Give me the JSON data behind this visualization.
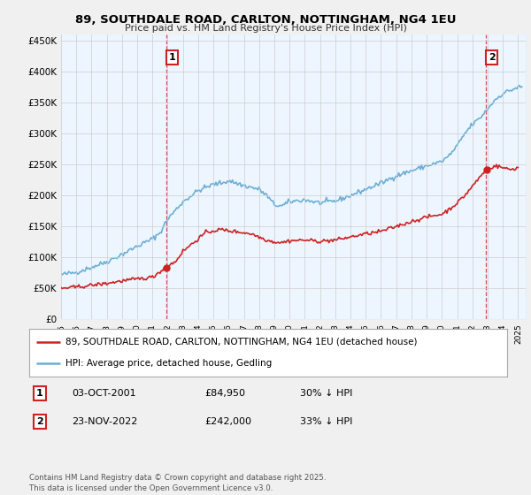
{
  "title_line1": "89, SOUTHDALE ROAD, CARLTON, NOTTINGHAM, NG4 1EU",
  "title_line2": "Price paid vs. HM Land Registry's House Price Index (HPI)",
  "ylabel_ticks": [
    "£0",
    "£50K",
    "£100K",
    "£150K",
    "£200K",
    "£250K",
    "£300K",
    "£350K",
    "£400K",
    "£450K"
  ],
  "ytick_vals": [
    0,
    50000,
    100000,
    150000,
    200000,
    250000,
    300000,
    350000,
    400000,
    450000
  ],
  "ylim": [
    0,
    460000
  ],
  "xlim_start": 1995.0,
  "xlim_end": 2025.5,
  "hpi_color": "#6baed6",
  "price_color": "#cc2222",
  "fill_color": "#ddeeff",
  "marker1_x": 2001.92,
  "marker1_y": 84950,
  "marker1_label": "1",
  "marker2_x": 2022.9,
  "marker2_y": 242000,
  "marker2_label": "2",
  "legend_line1": "89, SOUTHDALE ROAD, CARLTON, NOTTINGHAM, NG4 1EU (detached house)",
  "legend_line2": "HPI: Average price, detached house, Gedling",
  "note1_label": "1",
  "note1_date": "03-OCT-2001",
  "note1_price": "£84,950",
  "note1_hpi": "30% ↓ HPI",
  "note2_label": "2",
  "note2_date": "23-NOV-2022",
  "note2_price": "£242,000",
  "note2_hpi": "33% ↓ HPI",
  "footer": "Contains HM Land Registry data © Crown copyright and database right 2025.\nThis data is licensed under the Open Government Licence v3.0.",
  "bg_color": "#f0f0f0",
  "plot_bg_color": "#ffffff"
}
